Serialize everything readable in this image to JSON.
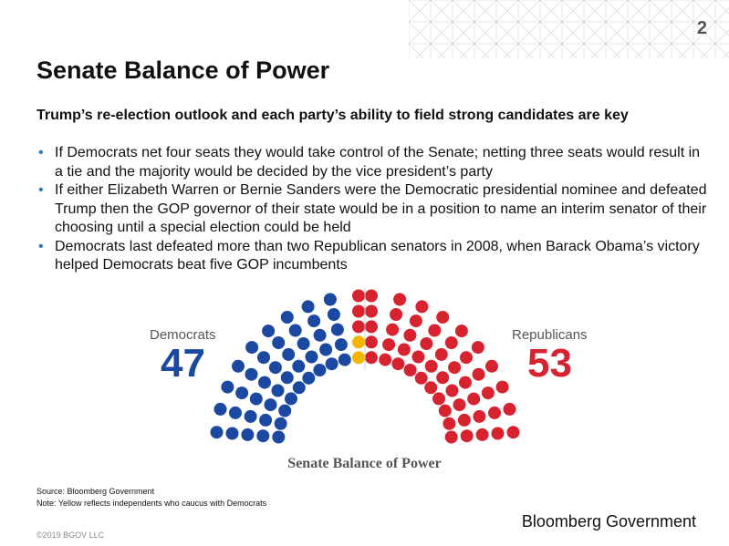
{
  "slide": {
    "page_number": "2",
    "title": "Senate Balance of Power",
    "subtitle": "Trump’s re-election outlook and each party’s ability to field strong candidates are key",
    "bullets": [
      "If Democrats net four seats they would take control of the Senate; netting three seats would result in a tie and the majority would be decided by the vice president’s party",
      "If either Elizabeth Warren or Bernie Sanders were the Democratic presidential nominee and defeated Trump then the GOP governor of their state would be in a position to name an interim senator of their choosing until a special election could be held",
      "Democrats last defeated more than two Republican senators in 2008, when Barack Obama’s victory helped Democrats beat five GOP incumbents"
    ],
    "source": "Source: Bloomberg Government",
    "note": "Note: Yellow reflects independents who caucus with Democrats",
    "copyright": "©2019 BGOV LLC",
    "logo_text": "Bloomberg Government"
  },
  "chart_data": {
    "type": "hemicycle",
    "title": "Senate Balance of Power",
    "parties": [
      {
        "name": "Democrats",
        "seats": 45,
        "label_count": "47",
        "color": "#1b48a0"
      },
      {
        "name": "Independents",
        "seats": 2,
        "color": "#f4b400"
      },
      {
        "name": "Republicans",
        "seats": 53,
        "label_count": "53",
        "color": "#d7232f"
      }
    ],
    "total_seats": 100
  }
}
